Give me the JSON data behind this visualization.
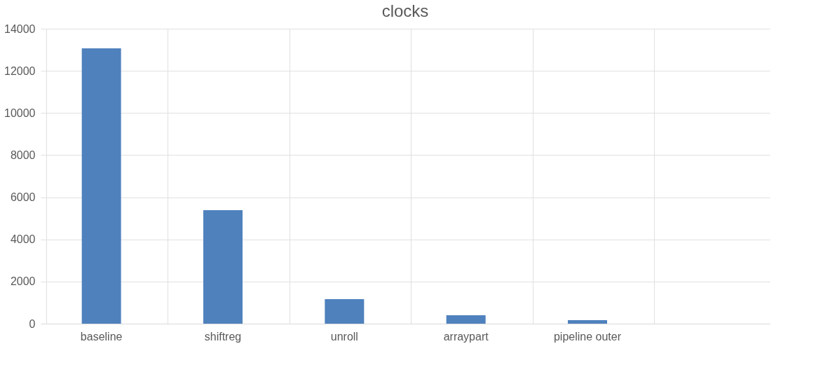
{
  "chart_data": {
    "type": "bar",
    "title": "clocks",
    "categories": [
      "baseline",
      "shiftreg",
      "unroll",
      "arraypart",
      "pipeline outer",
      null
    ],
    "values": [
      13070,
      5390,
      1160,
      400,
      170,
      null
    ],
    "color": "#4f81bd",
    "ylim": [
      0,
      14000
    ],
    "yticks": [
      0,
      2000,
      4000,
      6000,
      8000,
      10000,
      12000,
      14000
    ],
    "grid": true
  }
}
